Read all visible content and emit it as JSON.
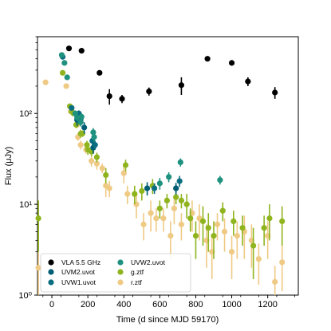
{
  "chart_data": {
    "type": "scatter",
    "xlabel": "Time (d since MJD 59170)",
    "ylabel": "Flux (μJy)",
    "xlim": [
      -80,
      1370
    ],
    "ylim": [
      1,
      700
    ],
    "yscale": "log",
    "x_ticks": [
      0,
      200,
      400,
      600,
      800,
      1000,
      1200
    ],
    "y_ticks": [
      {
        "value": 1,
        "label": "10⁰"
      },
      {
        "value": 10,
        "label": "10¹"
      },
      {
        "value": 100,
        "label": "10²"
      }
    ],
    "grid": false,
    "legend": "lower-left",
    "series": [
      {
        "name": "VLA 5.5 GHz",
        "color": "#000000",
        "points": [
          [
            95,
            520,
            0
          ],
          [
            165,
            490,
            0
          ],
          [
            265,
            280,
            0
          ],
          [
            320,
            155,
            30
          ],
          [
            390,
            145,
            15
          ],
          [
            540,
            175,
            18
          ],
          [
            720,
            205,
            45
          ],
          [
            865,
            400,
            0
          ],
          [
            1000,
            360,
            0
          ],
          [
            1090,
            225,
            25
          ],
          [
            1240,
            170,
            25
          ]
        ]
      },
      {
        "name": "UVM2.uvot",
        "color": "#005e74",
        "points": [
          [
            140,
            85,
            12
          ],
          [
            180,
            70,
            10
          ],
          [
            230,
            42,
            6
          ],
          [
            530,
            15,
            2.5
          ],
          [
            690,
            15,
            2.2
          ]
        ]
      },
      {
        "name": "UVW1.uvot",
        "color": "#0b6d80",
        "points": [
          [
            60,
            420,
            0
          ],
          [
            110,
            115,
            8
          ],
          [
            150,
            100,
            8
          ],
          [
            160,
            85,
            8
          ],
          [
            225,
            50,
            6
          ],
          [
            240,
            45,
            5
          ],
          [
            570,
            15,
            2
          ],
          [
            710,
            18,
            2.5
          ]
        ]
      },
      {
        "name": "UVW2.uvot",
        "color": "#1f917f",
        "points": [
          [
            55,
            440,
            0
          ],
          [
            70,
            360,
            0
          ],
          [
            85,
            250,
            0
          ],
          [
            130,
            100,
            8
          ],
          [
            140,
            90,
            8
          ],
          [
            160,
            80,
            8
          ],
          [
            165,
            92,
            8
          ],
          [
            230,
            62,
            7
          ],
          [
            235,
            55,
            6
          ],
          [
            600,
            17,
            2.5
          ],
          [
            650,
            20,
            2.5
          ],
          [
            715,
            29,
            3
          ],
          [
            935,
            18.5,
            2
          ]
        ]
      },
      {
        "name": "g.ztf",
        "color": "#8fb41e",
        "points": [
          [
            -75,
            7,
            4
          ],
          [
            60,
            280,
            0
          ],
          [
            100,
            120,
            8
          ],
          [
            110,
            105,
            6
          ],
          [
            120,
            100,
            6
          ],
          [
            135,
            75,
            6
          ],
          [
            160,
            60,
            6
          ],
          [
            170,
            60,
            5
          ],
          [
            195,
            45,
            5
          ],
          [
            200,
            40,
            5
          ],
          [
            220,
            38,
            4
          ],
          [
            250,
            33,
            4
          ],
          [
            300,
            21,
            4
          ],
          [
            410,
            27,
            4
          ],
          [
            460,
            13,
            3
          ],
          [
            500,
            14,
            3
          ],
          [
            560,
            16,
            3
          ],
          [
            600,
            9,
            2
          ],
          [
            640,
            11,
            2
          ],
          [
            690,
            12,
            2
          ],
          [
            720,
            11,
            2
          ],
          [
            750,
            10,
            3
          ],
          [
            770,
            7,
            2
          ],
          [
            800,
            4.5,
            2
          ],
          [
            840,
            6.5,
            3
          ],
          [
            870,
            5.5,
            2.5
          ],
          [
            900,
            4.5,
            2
          ],
          [
            950,
            8.5,
            2
          ],
          [
            1010,
            6.5,
            2
          ],
          [
            1060,
            5.5,
            2
          ],
          [
            1120,
            3.5,
            2
          ],
          [
            1180,
            5.5,
            2
          ],
          [
            1210,
            7,
            3
          ],
          [
            1280,
            6.5,
            3
          ]
        ]
      },
      {
        "name": "r.ztf",
        "color": "#efca85",
        "points": [
          [
            -75,
            2,
            1
          ],
          [
            -35,
            220,
            0
          ],
          [
            80,
            200,
            0
          ],
          [
            105,
            105,
            6
          ],
          [
            140,
            75,
            6
          ],
          [
            145,
            55,
            5
          ],
          [
            160,
            45,
            5
          ],
          [
            190,
            40,
            4
          ],
          [
            220,
            30,
            4
          ],
          [
            250,
            28,
            4
          ],
          [
            280,
            25,
            3
          ],
          [
            300,
            16,
            4
          ],
          [
            320,
            15,
            3
          ],
          [
            400,
            22,
            5
          ],
          [
            420,
            13,
            3
          ],
          [
            470,
            10,
            3
          ],
          [
            510,
            6,
            2
          ],
          [
            550,
            8,
            3
          ],
          [
            580,
            7,
            2
          ],
          [
            620,
            7,
            2
          ],
          [
            660,
            4.5,
            2
          ],
          [
            680,
            9,
            3
          ],
          [
            720,
            6,
            2
          ],
          [
            780,
            8,
            3
          ],
          [
            820,
            7,
            3
          ],
          [
            860,
            4,
            2
          ],
          [
            890,
            3,
            1.5
          ],
          [
            920,
            6,
            2
          ],
          [
            960,
            5,
            2
          ],
          [
            1000,
            3,
            1.5
          ],
          [
            1030,
            4.5,
            2
          ],
          [
            1070,
            5,
            2.5
          ],
          [
            1110,
            4,
            2
          ],
          [
            1150,
            2.5,
            1.2
          ],
          [
            1200,
            4.5,
            2
          ],
          [
            1240,
            1.4,
            0.7
          ],
          [
            1280,
            2.3,
            1.2
          ]
        ]
      }
    ]
  }
}
